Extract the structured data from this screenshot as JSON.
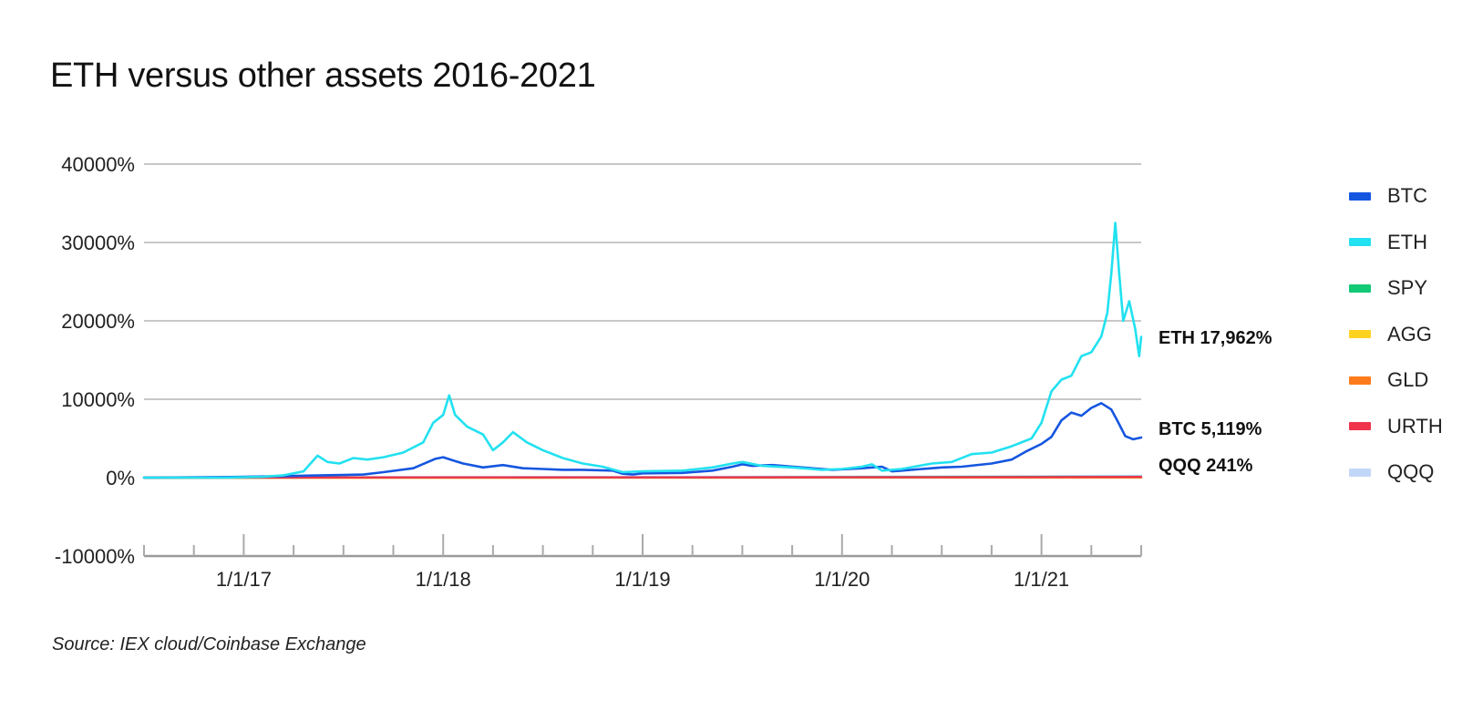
{
  "title": "ETH versus other assets 2016-2021",
  "source": "Source: IEX cloud/Coinbase Exchange",
  "chart_data": {
    "type": "line",
    "title": "ETH versus other assets 2016-2021",
    "xlabel": "",
    "ylabel": "",
    "ylim": [
      -10000,
      40000
    ],
    "xlim": [
      2016.5,
      2021.5
    ],
    "yticks": [
      -10000,
      0,
      10000,
      20000,
      30000,
      40000
    ],
    "ytick_labels": [
      "-10000%",
      "0%",
      "10000%",
      "20000%",
      "30000%",
      "40000%"
    ],
    "xtick_labels": [
      {
        "x": 2017,
        "label": "1/1/17"
      },
      {
        "x": 2018,
        "label": "1/1/18"
      },
      {
        "x": 2019,
        "label": "1/1/19"
      },
      {
        "x": 2020,
        "label": "1/1/20"
      },
      {
        "x": 2021,
        "label": "1/1/21"
      }
    ],
    "grid": true,
    "legend_position": "right",
    "series": [
      {
        "name": "BTC",
        "color": "#1556e0",
        "points": [
          [
            2016.5,
            0
          ],
          [
            2016.8,
            50
          ],
          [
            2017.0,
            100
          ],
          [
            2017.2,
            200
          ],
          [
            2017.4,
            300
          ],
          [
            2017.6,
            400
          ],
          [
            2017.7,
            700
          ],
          [
            2017.85,
            1200
          ],
          [
            2017.96,
            2400
          ],
          [
            2018.0,
            2600
          ],
          [
            2018.05,
            2200
          ],
          [
            2018.1,
            1800
          ],
          [
            2018.2,
            1300
          ],
          [
            2018.3,
            1600
          ],
          [
            2018.4,
            1200
          ],
          [
            2018.5,
            1100
          ],
          [
            2018.6,
            1000
          ],
          [
            2018.7,
            1000
          ],
          [
            2018.85,
            900
          ],
          [
            2018.9,
            500
          ],
          [
            2018.95,
            400
          ],
          [
            2019.0,
            550
          ],
          [
            2019.2,
            600
          ],
          [
            2019.35,
            900
          ],
          [
            2019.45,
            1400
          ],
          [
            2019.5,
            1700
          ],
          [
            2019.55,
            1500
          ],
          [
            2019.65,
            1600
          ],
          [
            2019.8,
            1300
          ],
          [
            2019.95,
            1000
          ],
          [
            2020.1,
            1200
          ],
          [
            2020.2,
            1400
          ],
          [
            2020.25,
            800
          ],
          [
            2020.3,
            900
          ],
          [
            2020.4,
            1100
          ],
          [
            2020.5,
            1300
          ],
          [
            2020.6,
            1400
          ],
          [
            2020.75,
            1800
          ],
          [
            2020.85,
            2300
          ],
          [
            2020.92,
            3300
          ],
          [
            2021.0,
            4300
          ],
          [
            2021.05,
            5200
          ],
          [
            2021.1,
            7300
          ],
          [
            2021.15,
            8300
          ],
          [
            2021.2,
            7900
          ],
          [
            2021.25,
            8900
          ],
          [
            2021.3,
            9500
          ],
          [
            2021.35,
            8700
          ],
          [
            2021.38,
            7300
          ],
          [
            2021.42,
            5300
          ],
          [
            2021.46,
            4900
          ],
          [
            2021.5,
            5119
          ]
        ]
      },
      {
        "name": "ETH",
        "color": "#22e1f0",
        "points": [
          [
            2016.5,
            0
          ],
          [
            2016.9,
            0
          ],
          [
            2017.1,
            100
          ],
          [
            2017.2,
            300
          ],
          [
            2017.3,
            800
          ],
          [
            2017.37,
            2800
          ],
          [
            2017.42,
            2000
          ],
          [
            2017.48,
            1800
          ],
          [
            2017.55,
            2500
          ],
          [
            2017.62,
            2300
          ],
          [
            2017.7,
            2600
          ],
          [
            2017.8,
            3200
          ],
          [
            2017.9,
            4500
          ],
          [
            2017.95,
            7000
          ],
          [
            2018.0,
            8000
          ],
          [
            2018.03,
            10500
          ],
          [
            2018.06,
            8000
          ],
          [
            2018.12,
            6500
          ],
          [
            2018.2,
            5500
          ],
          [
            2018.25,
            3500
          ],
          [
            2018.3,
            4500
          ],
          [
            2018.35,
            5800
          ],
          [
            2018.42,
            4500
          ],
          [
            2018.5,
            3500
          ],
          [
            2018.6,
            2500
          ],
          [
            2018.7,
            1800
          ],
          [
            2018.8,
            1400
          ],
          [
            2018.9,
            700
          ],
          [
            2019.0,
            800
          ],
          [
            2019.2,
            900
          ],
          [
            2019.35,
            1300
          ],
          [
            2019.45,
            1800
          ],
          [
            2019.5,
            2000
          ],
          [
            2019.6,
            1500
          ],
          [
            2019.75,
            1300
          ],
          [
            2019.9,
            1000
          ],
          [
            2020.0,
            1100
          ],
          [
            2020.1,
            1400
          ],
          [
            2020.15,
            1700
          ],
          [
            2020.2,
            900
          ],
          [
            2020.3,
            1100
          ],
          [
            2020.45,
            1800
          ],
          [
            2020.55,
            2000
          ],
          [
            2020.65,
            3000
          ],
          [
            2020.75,
            3200
          ],
          [
            2020.85,
            4000
          ],
          [
            2020.95,
            5000
          ],
          [
            2021.0,
            7000
          ],
          [
            2021.05,
            11000
          ],
          [
            2021.1,
            12500
          ],
          [
            2021.15,
            13000
          ],
          [
            2021.2,
            15500
          ],
          [
            2021.25,
            16000
          ],
          [
            2021.3,
            18000
          ],
          [
            2021.33,
            21000
          ],
          [
            2021.35,
            26000
          ],
          [
            2021.37,
            32500
          ],
          [
            2021.39,
            26000
          ],
          [
            2021.41,
            20000
          ],
          [
            2021.44,
            22500
          ],
          [
            2021.47,
            19000
          ],
          [
            2021.49,
            15500
          ],
          [
            2021.5,
            17962
          ]
        ]
      },
      {
        "name": "SPY",
        "color": "#12c976",
        "points": [
          [
            2016.5,
            0
          ],
          [
            2017.0,
            15
          ],
          [
            2018.0,
            35
          ],
          [
            2019.0,
            40
          ],
          [
            2020.0,
            60
          ],
          [
            2021.0,
            90
          ],
          [
            2021.5,
            110
          ]
        ]
      },
      {
        "name": "AGG",
        "color": "#ffd21f",
        "points": [
          [
            2016.5,
            0
          ],
          [
            2017.5,
            2
          ],
          [
            2018.5,
            3
          ],
          [
            2019.5,
            8
          ],
          [
            2020.5,
            12
          ],
          [
            2021.5,
            10
          ]
        ]
      },
      {
        "name": "GLD",
        "color": "#ff7a1a",
        "points": [
          [
            2016.5,
            0
          ],
          [
            2017.5,
            5
          ],
          [
            2018.5,
            3
          ],
          [
            2019.5,
            15
          ],
          [
            2020.5,
            40
          ],
          [
            2021.5,
            30
          ]
        ]
      },
      {
        "name": "URTH",
        "color": "#f0344b",
        "points": [
          [
            2016.5,
            0
          ],
          [
            2017.0,
            12
          ],
          [
            2018.0,
            30
          ],
          [
            2019.0,
            30
          ],
          [
            2020.0,
            45
          ],
          [
            2021.0,
            70
          ],
          [
            2021.5,
            90
          ]
        ]
      },
      {
        "name": "QQQ",
        "color": "#c2d7f7",
        "points": [
          [
            2016.5,
            0
          ],
          [
            2017.0,
            30
          ],
          [
            2018.0,
            80
          ],
          [
            2019.0,
            90
          ],
          [
            2020.0,
            130
          ],
          [
            2021.0,
            200
          ],
          [
            2021.5,
            241
          ]
        ]
      }
    ],
    "end_labels": [
      {
        "series": "ETH",
        "text": "ETH 17,962%"
      },
      {
        "series": "BTC",
        "text": "BTC 5,119%"
      },
      {
        "series": "QQQ",
        "text": "QQQ 241%"
      }
    ]
  },
  "legend": [
    {
      "name": "BTC",
      "color": "#1556e0"
    },
    {
      "name": "ETH",
      "color": "#22e1f0"
    },
    {
      "name": "SPY",
      "color": "#12c976"
    },
    {
      "name": "AGG",
      "color": "#ffd21f"
    },
    {
      "name": "GLD",
      "color": "#ff7a1a"
    },
    {
      "name": "URTH",
      "color": "#f0344b"
    },
    {
      "name": "QQQ",
      "color": "#c2d7f7"
    }
  ]
}
